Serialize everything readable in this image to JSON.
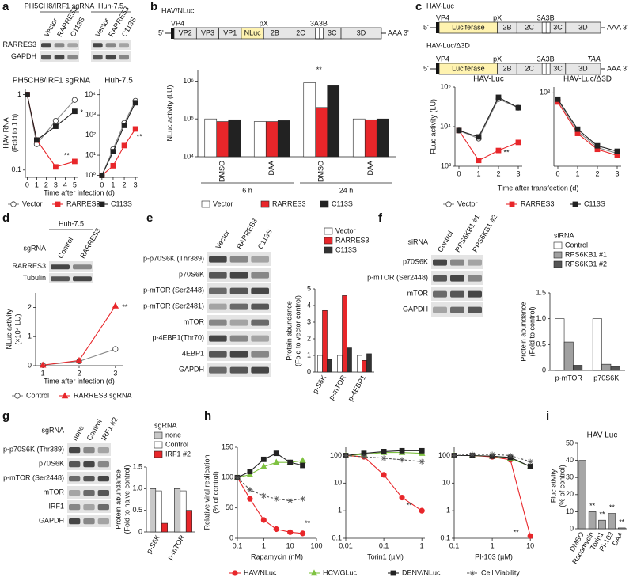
{
  "panels": [
    "a",
    "b",
    "c",
    "d",
    "e",
    "f",
    "g",
    "h",
    "i"
  ],
  "blots": [
    {
      "header": "PH5CH8/IRF1 sgRNA",
      "lanes": [
        "Vector",
        "RARRES3",
        "C113S"
      ],
      "rows": [
        "RARRES3",
        "GAPDH"
      ]
    },
    {
      "header": "Huh-7.5",
      "lanes": [
        "Vector",
        "RARRES3",
        "C113S"
      ]
    },
    {
      "header": "Huh-7.5",
      "label": "sgRNA",
      "lanes": [
        "Control",
        "RARRES3"
      ],
      "rows": [
        "RARRES3",
        "Tubulin"
      ]
    },
    {
      "lanes": [
        "Vector",
        "RARRES3",
        "C113S"
      ],
      "rows": [
        "p-p70S6K (Thr389)",
        "p70S6K",
        "p-mTOR (Ser2448)",
        "p-mTOR (Ser2481)",
        "mTOR",
        "p-4EBP1(Thr70)",
        "4EBP1",
        "GAPDH"
      ]
    },
    {
      "label": "siRNA",
      "lanes": [
        "Control",
        "RPS6KB1 #1",
        "RPS6KB1 #2"
      ],
      "rows": [
        "p70S6K",
        "p-mTOR (Ser2448)",
        "mTOR",
        "GAPDH"
      ]
    },
    {
      "label": "sgRNA",
      "lanes": [
        "none",
        "Control",
        "IRF1 #2"
      ],
      "rows": [
        "p-p70S6K (Thr389)",
        "p70S6K",
        "p-mTOR (Ser2448)",
        "mTOR",
        "IRF1",
        "GAPDH"
      ]
    }
  ],
  "diagrams": [
    {
      "title": "HAV/NLuc",
      "top": [
        "VP4",
        "pX",
        "3A",
        "3B"
      ],
      "boxes": [
        "VP2",
        "VP3",
        "VP1",
        "NLuc",
        "2B",
        "2C",
        "3C",
        "3D"
      ],
      "five": "5'",
      "three": "AAA 3'"
    },
    {
      "title": "HAV-Luc",
      "top": [
        "VP4",
        "pX",
        "3A",
        "3B"
      ],
      "boxes": [
        "Luciferase",
        "2B",
        "2C",
        "3C",
        "3D"
      ],
      "five": "5'",
      "three": "AAA 3'"
    },
    {
      "title": "HAV-Luc/Δ3D",
      "top": [
        "VP4",
        "pX",
        "3A",
        "3B",
        "TAA"
      ],
      "boxes": [
        "Luciferase",
        "2B",
        "2C",
        "3C",
        "3D"
      ],
      "five": "5'",
      "three": "AAA 3'"
    }
  ],
  "chart_data": [
    {
      "type": "line",
      "title": "PH5CH8/IRF1 sgRNA",
      "ylabel": [
        "HAV RNA",
        "(Fold to 1 h)"
      ],
      "xlabel": "Time after infection (d)",
      "ylog": true,
      "ylim": [
        0.08,
        1.2
      ],
      "yticks": [
        0.1,
        1
      ],
      "xlim": [
        -0.2,
        5.3
      ],
      "xticks": [
        0,
        1,
        2,
        3,
        4,
        5
      ],
      "x": [
        0,
        1,
        3,
        5
      ],
      "series": [
        {
          "name": "Vector",
          "color": "#ffffff",
          "marker": "circle",
          "values": [
            1,
            0.22,
            0.45,
            0.85
          ]
        },
        {
          "name": "RARRES3",
          "color": "#e8262a",
          "marker": "square",
          "values": [
            1,
            0.25,
            0.11,
            0.13
          ]
        },
        {
          "name": "C113S",
          "color": "#222222",
          "marker": "square",
          "values": [
            1,
            0.25,
            0.38,
            0.6
          ]
        }
      ],
      "annotations": [
        "*",
        "**"
      ]
    },
    {
      "type": "line",
      "title": "Huh-7.5",
      "ylog": true,
      "ylim": [
        0.8,
        20000
      ],
      "yticks": [
        {
          "value": 1,
          "label": "10⁰"
        },
        {
          "value": 10,
          "label": "10¹"
        },
        {
          "value": 100,
          "label": "10²"
        },
        {
          "value": 1000,
          "label": "10³"
        },
        {
          "value": 10000,
          "label": "10⁴"
        }
      ],
      "xlim": [
        -0.2,
        3.2
      ],
      "xticks": [
        0,
        1,
        2,
        3
      ],
      "x": [
        0,
        1,
        2,
        3
      ],
      "series": [
        {
          "color": "#ffffff",
          "marker": "circle",
          "values": [
            1,
            20,
            400,
            5000
          ]
        },
        {
          "color": "#e8262a",
          "marker": "square",
          "values": [
            1,
            3,
            30,
            200
          ]
        },
        {
          "color": "#222222",
          "marker": "square",
          "values": [
            1,
            15,
            300,
            4000
          ]
        }
      ],
      "annotations": [
        "**"
      ]
    },
    {
      "type": "bar",
      "ylabel": [
        "NLuc activity (LU)"
      ],
      "ylog": true,
      "ylim": [
        10000,
        2000000
      ],
      "yticks": [
        {
          "value": 10000,
          "label": "10⁴"
        },
        {
          "value": 100000,
          "label": "10⁵"
        },
        {
          "value": 1000000,
          "label": "10⁶"
        }
      ],
      "categories": [
        "DMSO",
        "DAA",
        "DMSO",
        "DAA"
      ],
      "groups": [
        "6 h",
        "24 h"
      ],
      "series": [
        {
          "name": "Vector",
          "color": "#ffffff",
          "values": [
            100000,
            85000,
            900000,
            100000
          ]
        },
        {
          "name": "RARRES3",
          "color": "#e8262a",
          "values": [
            85000,
            85000,
            200000,
            95000
          ]
        },
        {
          "name": "C113S",
          "color": "#222222",
          "values": [
            95000,
            90000,
            750000,
            100000
          ]
        }
      ],
      "annotations": [
        "**"
      ]
    },
    {
      "type": "line",
      "title": "HAV-Luc",
      "ylabel": [
        "FLuc activity (LU)"
      ],
      "ylog": true,
      "ylim": [
        1000,
        100000
      ],
      "yticks": [
        {
          "value": 1000,
          "label": "10³"
        },
        {
          "value": 10000,
          "label": "10⁴"
        },
        {
          "value": 100000,
          "label": "10⁵"
        }
      ],
      "xlim": [
        -0.2,
        3.2
      ],
      "xticks": [
        0,
        1,
        2,
        3
      ],
      "x": [
        0,
        1,
        2,
        3
      ],
      "series": [
        {
          "name": "Vector",
          "color": "#ffffff",
          "marker": "circle",
          "values": [
            8000,
            5000,
            50000,
            30000
          ]
        },
        {
          "name": "RARRES3",
          "color": "#e8262a",
          "marker": "square",
          "values": [
            8000,
            1400,
            2500,
            4000
          ]
        },
        {
          "name": "C113S",
          "color": "#222222",
          "marker": "square",
          "values": [
            8000,
            5500,
            55000,
            30000
          ]
        }
      ],
      "annotations": [
        "**"
      ]
    },
    {
      "type": "line",
      "title": "HAV-Luc/Δ3D",
      "xlabel": "Time after transfection (d)",
      "ylog": true,
      "ylim": [
        100,
        1200
      ],
      "yticks": [
        {
          "value": 1000,
          "label": "10³"
        }
      ],
      "xlim": [
        -0.2,
        3.2
      ],
      "xticks": [
        0,
        1,
        2,
        3
      ],
      "x": [
        0,
        1,
        2,
        3
      ],
      "series": [
        {
          "color": "#ffffff",
          "marker": "circle",
          "values": [
            800,
            300,
            180,
            150
          ]
        },
        {
          "color": "#e8262a",
          "marker": "square",
          "values": [
            750,
            280,
            170,
            140
          ]
        },
        {
          "color": "#222222",
          "marker": "square",
          "values": [
            820,
            320,
            190,
            160
          ]
        }
      ]
    },
    {
      "type": "line",
      "ylabel": [
        "NLuc activity",
        "(×10⁴ LU)"
      ],
      "xlabel": "Time after infection (d)",
      "ylim": [
        0,
        2.5
      ],
      "yticks": [
        0,
        1,
        2
      ],
      "xlim": [
        0.8,
        3.2
      ],
      "xticks": [
        1,
        2,
        3
      ],
      "x": [
        1,
        2,
        3
      ],
      "series": [
        {
          "name": "Control",
          "color": "#ffffff",
          "marker": "circle",
          "values": [
            0.02,
            0.15,
            0.57
          ]
        },
        {
          "name": "RARRES3 sgRNA",
          "color": "#e8262a",
          "marker": "triangle",
          "values": [
            0.02,
            0.18,
            2.05
          ]
        }
      ],
      "annotations": [
        "**"
      ]
    },
    {
      "type": "bar",
      "ylabel": [
        "Protein abundance",
        "(Fold to vector control)"
      ],
      "ylim": [
        0,
        5
      ],
      "yticks": [
        0,
        1,
        2,
        3,
        4,
        5
      ],
      "categories": [
        "p-S6K",
        "p-mTOR",
        "p-4EBP1"
      ],
      "series": [
        {
          "name": "Vector",
          "color": "#ffffff",
          "values": [
            1,
            1,
            1
          ]
        },
        {
          "name": "RARRES3",
          "color": "#e8262a",
          "values": [
            3.7,
            4.6,
            0.7
          ]
        },
        {
          "name": "C113S",
          "color": "#333333",
          "values": [
            0.75,
            1.45,
            1.1
          ]
        }
      ]
    },
    {
      "type": "bar",
      "ylabel": [
        "Protein abundance",
        "(Fold to control)"
      ],
      "ylim": [
        0,
        1.5
      ],
      "yticks": [
        0,
        0.5,
        {
          "value": 1,
          "label": "1.0"
        },
        1.5
      ],
      "legend_title": "siRNA",
      "categories": [
        "p-mTOR",
        "p70S6K"
      ],
      "series": [
        {
          "name": "Control",
          "color": "#ffffff",
          "values": [
            1,
            1
          ]
        },
        {
          "name": "RPS6KB1 #1",
          "color": "#a0a0a0",
          "values": [
            0.55,
            0.12
          ]
        },
        {
          "name": "RPS6KB1 #2",
          "color": "#555555",
          "values": [
            0.1,
            0.07
          ]
        }
      ]
    },
    {
      "type": "bar",
      "ylabel": [
        "Protein abundance",
        "(Fold to naive control)"
      ],
      "ylim": [
        0,
        1.5
      ],
      "yticks": [
        0,
        0.5,
        {
          "value": 1,
          "label": "1.0"
        },
        1.5
      ],
      "legend_title": "sgRNA",
      "categories": [
        "p-S6K",
        "p-mTOR"
      ],
      "series": [
        {
          "name": "none",
          "color": "#c8c8c8",
          "values": [
            1,
            1
          ]
        },
        {
          "name": "Control",
          "color": "#ffffff",
          "values": [
            0.95,
            0.95
          ]
        },
        {
          "name": "IRF1 #2",
          "color": "#e8262a",
          "values": [
            0.2,
            0.5
          ]
        }
      ]
    },
    {
      "type": "line",
      "ylabel": [
        "Relative viral replication",
        "(% of control)"
      ],
      "xlabel": "Rapamycin (nM)",
      "xlog": true,
      "xlim": [
        0.1,
        100
      ],
      "xticks": [
        0.1,
        1,
        10,
        100
      ],
      "ylim": [
        0,
        150
      ],
      "yticks": [
        0,
        50,
        100,
        150
      ],
      "x": [
        0.1,
        0.3,
        1,
        3,
        10,
        30
      ],
      "series": [
        {
          "name": "HAV/NLuc",
          "color": "#e8262a",
          "marker": "circle",
          "values": [
            100,
            65,
            30,
            15,
            10,
            8
          ]
        },
        {
          "name": "HCV/GLuc",
          "color": "#7fc241",
          "marker": "triangle",
          "values": [
            100,
            105,
            118,
            125,
            125,
            128
          ]
        },
        {
          "name": "DENV/NLuc",
          "color": "#222222",
          "marker": "square",
          "values": [
            100,
            110,
            130,
            140,
            125,
            120
          ]
        },
        {
          "name": "Cell Viability",
          "color": "#555555",
          "marker": "star",
          "dash": true,
          "values": [
            100,
            80,
            70,
            65,
            62,
            65
          ]
        }
      ],
      "annotations": [
        "**"
      ]
    },
    {
      "type": "line",
      "xlabel": "Torin1 (µM)",
      "xlog": true,
      "xlim": [
        0.01,
        1.2
      ],
      "xticks": [
        0.01,
        0.1,
        1
      ],
      "ylog": true,
      "ylim": [
        0.1,
        200
      ],
      "yticks": [
        0.1,
        1,
        10,
        100
      ],
      "x": [
        0.01,
        0.03,
        0.1,
        0.3,
        1
      ],
      "series": [
        {
          "color": "#e8262a",
          "marker": "circle",
          "values": [
            100,
            90,
            20,
            3,
            1
          ]
        },
        {
          "color": "#7fc241",
          "marker": "triangle",
          "values": [
            100,
            110,
            130,
            130,
            120
          ]
        },
        {
          "color": "#222222",
          "marker": "square",
          "values": [
            100,
            120,
            140,
            150,
            150
          ]
        },
        {
          "color": "#555555",
          "marker": "star",
          "dash": true,
          "values": [
            100,
            90,
            80,
            70,
            60
          ]
        }
      ],
      "annotations": [
        "**"
      ]
    },
    {
      "type": "line",
      "xlabel": "PI-103 (µM)",
      "xlog": true,
      "xlim": [
        0.1,
        12
      ],
      "xticks": [
        0.1,
        1,
        10
      ],
      "ylog": true,
      "ylim": [
        0.1,
        200
      ],
      "yticks": [
        0.1,
        1,
        10,
        100
      ],
      "x": [
        0.1,
        0.3,
        1,
        3,
        10
      ],
      "series": [
        {
          "color": "#e8262a",
          "marker": "circle",
          "values": [
            100,
            100,
            90,
            70,
            0.12
          ]
        },
        {
          "color": "#7fc241",
          "marker": "triangle",
          "values": [
            100,
            100,
            95,
            80,
            40
          ]
        },
        {
          "color": "#222222",
          "marker": "square",
          "values": [
            100,
            100,
            95,
            85,
            40
          ]
        },
        {
          "color": "#555555",
          "marker": "star",
          "dash": true,
          "values": [
            100,
            110,
            110,
            100,
            60
          ]
        }
      ],
      "annotations": [
        "**"
      ]
    },
    {
      "type": "bar",
      "title": "HAV-Luc",
      "ylabel": [
        "Fluc ativity",
        "(% of control)"
      ],
      "ylim": [
        0,
        50
      ],
      "yticks": [
        0,
        10,
        20,
        30,
        40,
        50
      ],
      "categories": [
        "DMSO",
        "Rapamycin",
        "Torin1",
        "PI-103",
        "DAA"
      ],
      "values": [
        40,
        10,
        5,
        9,
        0.5
      ],
      "color": "#a6a6a6",
      "annotations": [
        "**",
        "**",
        "**",
        "**"
      ]
    }
  ]
}
